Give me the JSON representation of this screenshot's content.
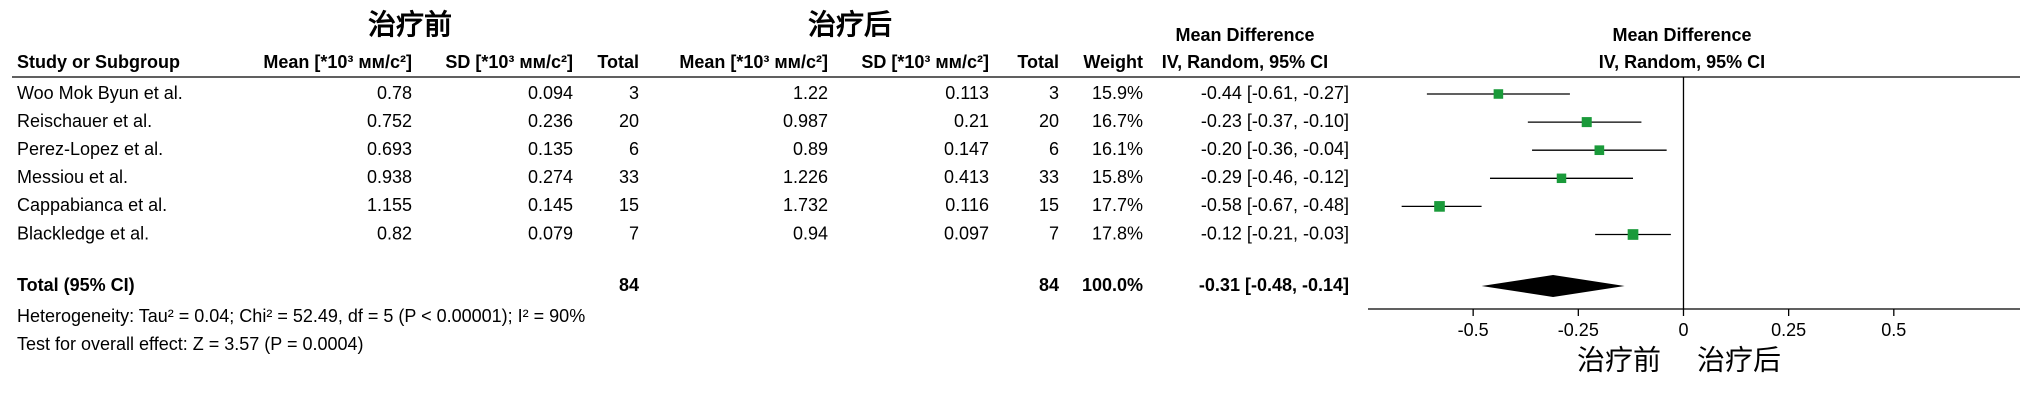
{
  "chart_data": {
    "type": "forest",
    "group_labels": [
      "治疗前",
      "治疗后"
    ],
    "column_headers": [
      "Study or Subgroup",
      "Mean [*10³ мм/c²]",
      "SD [*10³ мм/c²]",
      "Total",
      "Mean [*10³ мм/c²]",
      "SD [*10³ мм/c²]",
      "Total",
      "Weight"
    ],
    "effect_title": "Mean Difference",
    "effect_subtitle": "IV, Random, 95% CI",
    "studies": [
      "Woo Mok Byun et al.",
      "Reischauer et al.",
      "Perez-Lopez et al.",
      "Messiou et al.",
      "Cappabianca et al.",
      "Blackledge et al."
    ],
    "mean1": [
      0.78,
      0.752,
      0.693,
      0.938,
      1.155,
      0.82
    ],
    "sd1": [
      0.094,
      0.236,
      0.135,
      0.274,
      0.145,
      0.079
    ],
    "n1": [
      3,
      20,
      6,
      33,
      15,
      7
    ],
    "mean2": [
      1.22,
      0.987,
      0.89,
      1.226,
      1.732,
      0.94
    ],
    "sd2": [
      0.113,
      0.21,
      0.147,
      0.413,
      0.116,
      0.097
    ],
    "n2": [
      3,
      20,
      6,
      33,
      15,
      7
    ],
    "weights": [
      15.9,
      16.7,
      16.1,
      15.8,
      17.7,
      17.8
    ],
    "weight_labels": [
      "15.9%",
      "16.7%",
      "16.1%",
      "15.8%",
      "17.7%",
      "17.8%"
    ],
    "md": [
      -0.44,
      -0.23,
      -0.2,
      -0.29,
      -0.58,
      -0.12
    ],
    "ci_low": [
      -0.61,
      -0.37,
      -0.36,
      -0.46,
      -0.67,
      -0.21
    ],
    "ci_high": [
      -0.27,
      -0.1,
      -0.04,
      -0.12,
      -0.48,
      -0.03
    ],
    "ci_labels": [
      "-0.44 [-0.61, -0.27]",
      "-0.23 [-0.37, -0.10]",
      "-0.20 [-0.36, -0.04]",
      "-0.29 [-0.46, -0.12]",
      "-0.58 [-0.67, -0.48]",
      "-0.12 [-0.21, -0.03]"
    ],
    "total": {
      "label": "Total (95% CI)",
      "n1": 84,
      "n2": 84,
      "weight": 100.0,
      "weight_label": "100.0%",
      "md": -0.31,
      "ci_low": -0.48,
      "ci_high": -0.14,
      "ci_label": "-0.31 [-0.48, -0.14]"
    },
    "heterogeneity": "Heterogeneity: Tau² = 0.04; Chi² = 52.49, df = 5 (P < 0.00001); I² = 90%",
    "overall_effect": "Test for overall effect: Z = 3.57 (P = 0.0004)",
    "xlim": [
      -0.75,
      0.8
    ],
    "xticks": [
      -0.5,
      -0.25,
      0,
      0.25,
      0.5
    ],
    "marker_color": "#1a9a3a",
    "diamond_color": "#000000"
  }
}
